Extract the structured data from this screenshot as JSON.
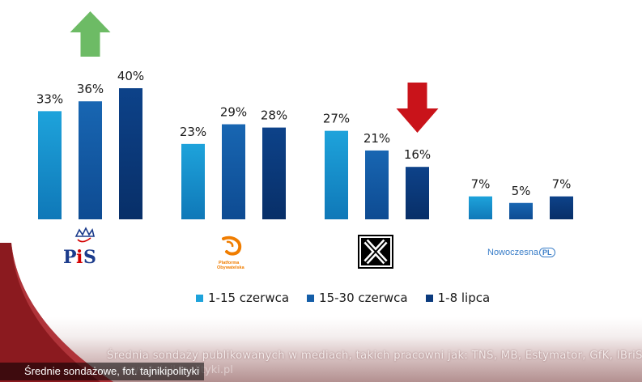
{
  "chart_data": {
    "type": "bar",
    "categories": [
      "PiS",
      "Platforma Obywatelska",
      "Kukiz'15",
      "Nowoczesna"
    ],
    "series": [
      {
        "name": "1-15 czerwca",
        "values": [
          33,
          23,
          27,
          7
        ]
      },
      {
        "name": "15-30 czerwca",
        "values": [
          36,
          29,
          21,
          5
        ]
      },
      {
        "name": "1-8 lipca",
        "values": [
          40,
          28,
          16,
          7
        ]
      }
    ],
    "value_suffix": "%",
    "ylim": [
      0,
      42
    ],
    "grid": false,
    "legend_position": "bottom",
    "series_colors": [
      "#1ea3db",
      "#145ea8",
      "#0b3b7e"
    ],
    "annotations": [
      {
        "type": "up-arrow",
        "category": "PiS",
        "color": "#6dbb65"
      },
      {
        "type": "down-arrow",
        "category": "Kukiz'15",
        "color": "#c9131a"
      }
    ]
  },
  "logos": {
    "pis": {
      "text": "PiS",
      "colors": [
        "#1c3c8c",
        "#d40000"
      ]
    },
    "po": {
      "text_lines": [
        "Platforma",
        "Obywatelska"
      ],
      "color": "#f07d00"
    },
    "kukiz": {
      "icon": "x-box-icon"
    },
    "nowoczesna": {
      "text": "Nowoczesna",
      "badge": "PL",
      "color": "#3a7ec8"
    }
  },
  "legend": [
    {
      "label": "1-15 czerwca",
      "color": "#1ea3db"
    },
    {
      "label": "15-30 czerwca",
      "color": "#145ea8"
    },
    {
      "label": "1-8 lipca",
      "color": "#0b3b7e"
    }
  ],
  "footer": {
    "source": "Średnia sondaży publikowanych w mediach, takich pracowni jak: TNS, MB, Estymator, GfK, IBriS",
    "url": "www.tajnikipolityki.pl"
  },
  "caption": "Średnie sondażowe, fot. tajnikipolityki"
}
